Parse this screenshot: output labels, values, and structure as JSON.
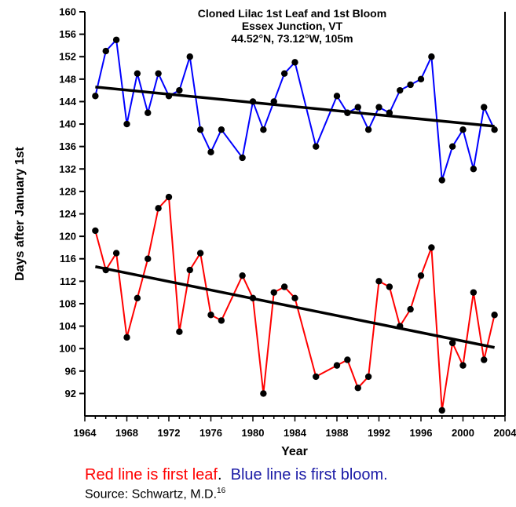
{
  "chart_data": {
    "type": "line",
    "title": [
      "Cloned Lilac 1st Leaf and 1st Bloom",
      "Essex Junction, VT",
      "44.52°N, 73.12°W, 105m"
    ],
    "xlabel": "Year",
    "ylabel": "Days after January 1st",
    "xlim": [
      1964,
      2004
    ],
    "ylim": [
      88,
      160
    ],
    "x_ticks": [
      "1964",
      "1968",
      "1972",
      "1976",
      "1980",
      "1984",
      "1988",
      "1992",
      "1996",
      "2000",
      "2004"
    ],
    "y_ticks": [
      "92",
      "96",
      "100",
      "104",
      "108",
      "112",
      "116",
      "120",
      "124",
      "128",
      "132",
      "136",
      "140",
      "144",
      "148",
      "152",
      "156",
      "160"
    ],
    "series": [
      {
        "key": "bloom",
        "color": "#0000ff",
        "points": [
          [
            1965,
            145
          ],
          [
            1966,
            153
          ],
          [
            1967,
            155
          ],
          [
            1968,
            140
          ],
          [
            1969,
            149
          ],
          [
            1970,
            142
          ],
          [
            1971,
            149
          ],
          [
            1972,
            145
          ],
          [
            1973,
            146
          ],
          [
            1974,
            152
          ],
          [
            1975,
            139
          ],
          [
            1976,
            135
          ],
          [
            1977,
            139
          ],
          [
            1979,
            134
          ],
          [
            1980,
            144
          ],
          [
            1981,
            139
          ],
          [
            1982,
            144
          ],
          [
            1983,
            149
          ],
          [
            1984,
            151
          ],
          [
            1986,
            136
          ],
          [
            1988,
            145
          ],
          [
            1989,
            142
          ],
          [
            1990,
            143
          ],
          [
            1991,
            139
          ],
          [
            1992,
            143
          ],
          [
            1993,
            142
          ],
          [
            1994,
            146
          ],
          [
            1995,
            147
          ],
          [
            1996,
            148
          ],
          [
            1997,
            152
          ],
          [
            1998,
            130
          ],
          [
            1999,
            136
          ],
          [
            2000,
            139
          ],
          [
            2001,
            132
          ],
          [
            2002,
            143
          ],
          [
            2003,
            139
          ]
        ],
        "trend": [
          [
            1965,
            146.6
          ],
          [
            2003,
            139.6
          ]
        ]
      },
      {
        "key": "leaf",
        "color": "#ff0000",
        "points": [
          [
            1965,
            121
          ],
          [
            1966,
            114
          ],
          [
            1967,
            117
          ],
          [
            1968,
            102
          ],
          [
            1969,
            109
          ],
          [
            1970,
            116
          ],
          [
            1971,
            125
          ],
          [
            1972,
            127
          ],
          [
            1973,
            103
          ],
          [
            1974,
            114
          ],
          [
            1975,
            117
          ],
          [
            1976,
            106
          ],
          [
            1977,
            105
          ],
          [
            1979,
            113
          ],
          [
            1980,
            109
          ],
          [
            1981,
            92
          ],
          [
            1982,
            110
          ],
          [
            1983,
            111
          ],
          [
            1984,
            109
          ],
          [
            1986,
            95
          ],
          [
            1988,
            97
          ],
          [
            1989,
            98
          ],
          [
            1990,
            93
          ],
          [
            1991,
            95
          ],
          [
            1992,
            112
          ],
          [
            1993,
            111
          ],
          [
            1994,
            104
          ],
          [
            1995,
            107
          ],
          [
            1996,
            113
          ],
          [
            1997,
            118
          ],
          [
            1998,
            89
          ],
          [
            1999,
            101
          ],
          [
            2000,
            97
          ],
          [
            2001,
            110
          ],
          [
            2002,
            98
          ],
          [
            2003,
            106
          ]
        ],
        "trend": [
          [
            1965,
            114.6
          ],
          [
            2003,
            100.2
          ]
        ]
      }
    ]
  },
  "caption": {
    "red_text": "Red line is first leaf",
    "separator": ".  ",
    "blue_text": "Blue line is first bloom",
    "end": "."
  },
  "source": {
    "text": "Source:  Schwartz, M.D.",
    "ref": "16"
  }
}
